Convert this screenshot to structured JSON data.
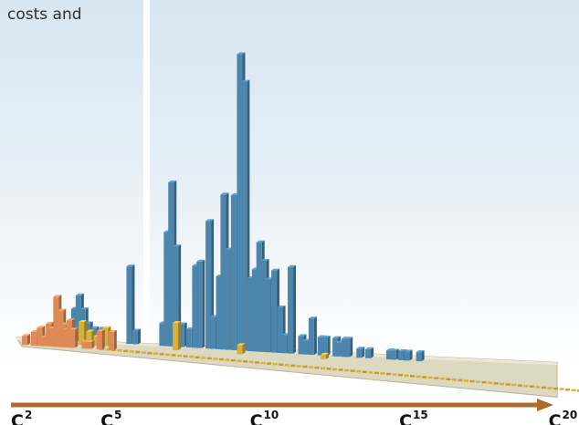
{
  "caption": "costs and",
  "chart_data": {
    "type": "bar",
    "subtype": "3d-bar-spectrum",
    "x_axis": {
      "direction": "arrow-right",
      "ticks": [
        {
          "base": "C",
          "sup": "2",
          "value": 2
        },
        {
          "base": "C",
          "sup": "5",
          "value": 5
        },
        {
          "base": "C",
          "sup": "10",
          "value": 10
        },
        {
          "base": "C",
          "sup": "15",
          "value": 15
        },
        {
          "base": "C",
          "sup": "20",
          "value": 20
        }
      ]
    },
    "colors": {
      "blue": "#4d86ad",
      "yellow": "#d8b13a",
      "orange": "#dd8a57",
      "floor": "#ddd9c1",
      "arrow": "#b0682d"
    },
    "series": [
      {
        "color": "blue",
        "bars": [
          [
            3.3,
            2
          ],
          [
            3.5,
            4
          ],
          [
            3.65,
            7
          ],
          [
            3.8,
            10
          ],
          [
            3.95,
            7
          ],
          [
            4.1,
            4
          ],
          [
            4.3,
            3
          ],
          [
            4.55,
            3
          ],
          [
            4.75,
            2
          ],
          [
            5.5,
            17
          ],
          [
            5.7,
            3
          ],
          [
            6.6,
            5
          ],
          [
            6.75,
            25
          ],
          [
            6.9,
            36
          ],
          [
            7.05,
            22
          ],
          [
            7.25,
            5
          ],
          [
            7.5,
            4
          ],
          [
            7.7,
            18
          ],
          [
            7.85,
            19
          ],
          [
            8.15,
            28
          ],
          [
            8.3,
            7
          ],
          [
            8.5,
            16
          ],
          [
            8.65,
            34
          ],
          [
            8.8,
            22
          ],
          [
            9.0,
            34
          ],
          [
            9.2,
            65
          ],
          [
            9.35,
            59
          ],
          [
            9.55,
            16
          ],
          [
            9.7,
            18
          ],
          [
            9.85,
            24
          ],
          [
            10.0,
            20
          ],
          [
            10.15,
            16
          ],
          [
            10.35,
            18
          ],
          [
            10.55,
            10
          ],
          [
            10.7,
            4
          ],
          [
            10.9,
            19
          ],
          [
            11.25,
            4
          ],
          [
            11.4,
            3
          ],
          [
            11.6,
            8
          ],
          [
            11.9,
            4
          ],
          [
            12.05,
            4
          ],
          [
            12.4,
            4
          ],
          [
            12.5,
            3
          ],
          [
            12.7,
            4
          ],
          [
            12.8,
            4
          ],
          [
            13.2,
            2
          ],
          [
            13.5,
            2
          ],
          [
            14.2,
            2
          ],
          [
            14.35,
            2
          ],
          [
            14.6,
            2
          ],
          [
            14.8,
            2
          ],
          [
            15.2,
            2
          ]
        ]
      },
      {
        "color": "yellow",
        "bars": [
          [
            2.6,
            1.5
          ],
          [
            3.0,
            2
          ],
          [
            3.5,
            3
          ],
          [
            3.9,
            5
          ],
          [
            4.15,
            3
          ],
          [
            4.4,
            2
          ],
          [
            4.5,
            2
          ],
          [
            4.7,
            4
          ],
          [
            7.05,
            6
          ],
          [
            9.2,
            2
          ],
          [
            12.0,
            1
          ]
        ]
      },
      {
        "color": "orange",
        "bars": [
          [
            2.0,
            2
          ],
          [
            2.3,
            3
          ],
          [
            2.5,
            4
          ],
          [
            2.65,
            2
          ],
          [
            2.8,
            5
          ],
          [
            2.9,
            4
          ],
          [
            3.0,
            2.5
          ],
          [
            3.05,
            11
          ],
          [
            3.2,
            8
          ],
          [
            3.3,
            5
          ],
          [
            3.4,
            4
          ],
          [
            3.5,
            6
          ],
          [
            3.6,
            4
          ],
          [
            4.0,
            1.5
          ],
          [
            4.15,
            1.5
          ],
          [
            4.5,
            4
          ],
          [
            4.9,
            4
          ]
        ]
      }
    ],
    "units_note": "bar heights in relative units (no y-axis printed)"
  }
}
